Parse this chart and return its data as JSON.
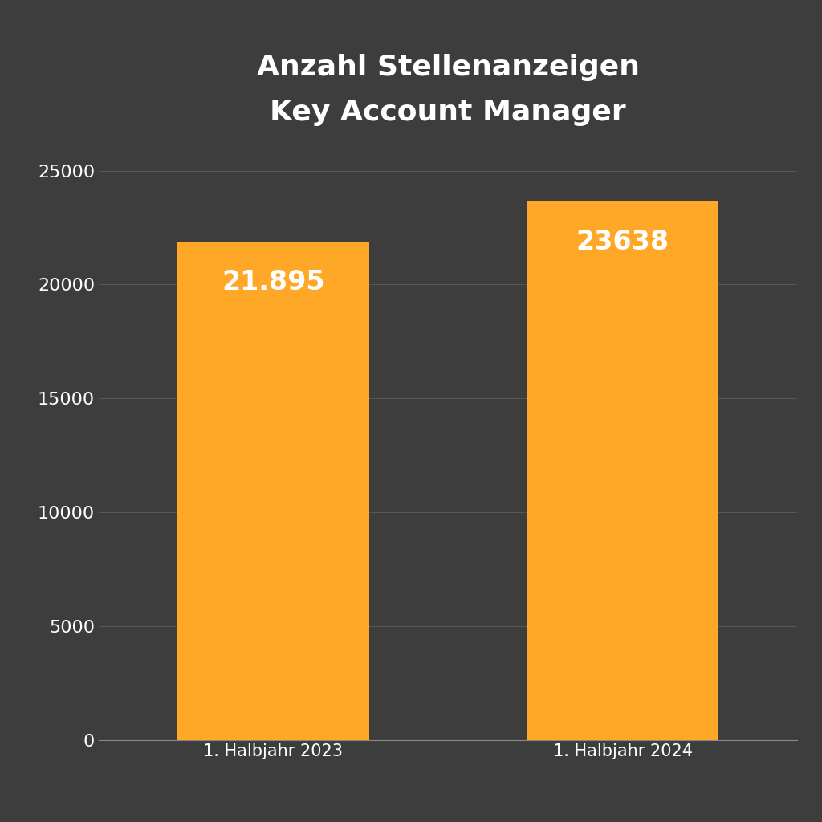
{
  "title_line1": "Anzahl Stellenanzeigen",
  "title_line2": "Key Account Manager",
  "categories": [
    "1. Halbjahr 2023",
    "1. Halbjahr 2024"
  ],
  "values": [
    21895,
    23638
  ],
  "bar_labels": [
    "21.895",
    "23638"
  ],
  "bar_color": "#FFA726",
  "background_color": "#3d3d3d",
  "text_color": "#ffffff",
  "grid_color": "#888888",
  "ylim": [
    0,
    26000
  ],
  "yticks": [
    0,
    5000,
    10000,
    15000,
    20000,
    25000
  ],
  "title_fontsize": 26,
  "tick_fontsize": 16,
  "bar_label_fontsize": 24,
  "xlabel_fontsize": 15
}
